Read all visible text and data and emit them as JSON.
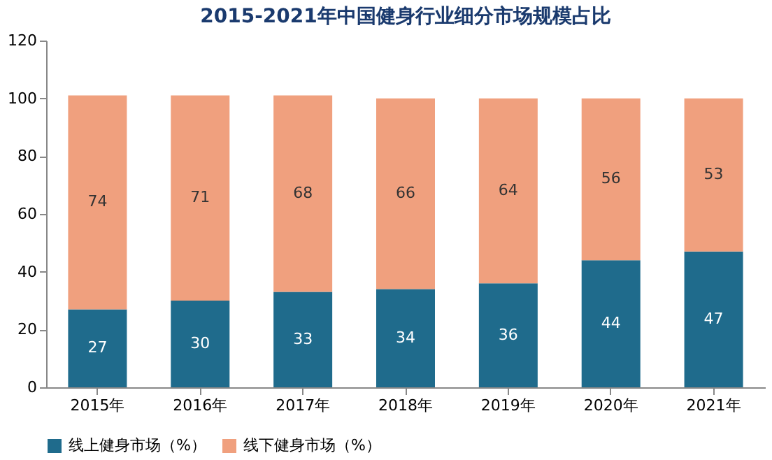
{
  "chart_data": {
    "type": "bar",
    "title": "2015-2021年中国健身行业细分市场规模占比",
    "categories": [
      "2015年",
      "2016年",
      "2017年",
      "2018年",
      "2019年",
      "2020年",
      "2021年"
    ],
    "series": [
      {
        "name": "线上健身市场（%）",
        "color": "#1f6b8c",
        "values": [
          27,
          30,
          33,
          34,
          36,
          44,
          47
        ]
      },
      {
        "name": "线下健身市场（%）",
        "color": "#f0a07e",
        "values": [
          74,
          71,
          68,
          66,
          64,
          56,
          53
        ]
      }
    ],
    "stacked": true,
    "data_labels": true,
    "ylim": [
      0,
      120
    ],
    "yticks": [
      0,
      20,
      40,
      60,
      80,
      100,
      120
    ],
    "grid": false,
    "legend": "bottom"
  }
}
